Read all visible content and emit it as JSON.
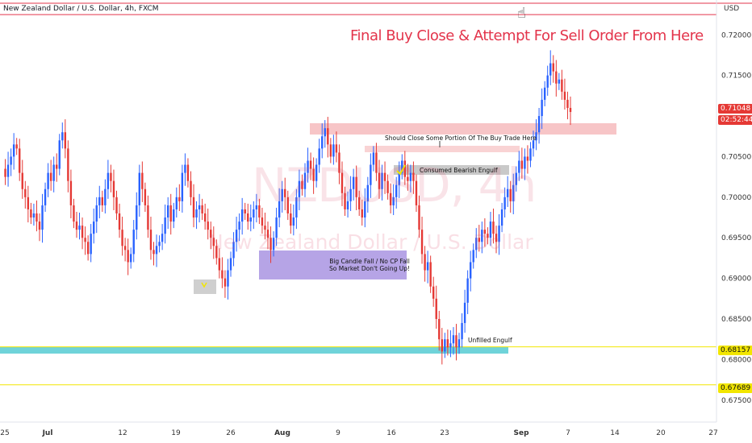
{
  "header": {
    "symbol_line": "New Zealand Dollar / U.S. Dollar, 4h, FXCM",
    "currency": "USD",
    "cursor_icon": "hand-pointer-icon"
  },
  "title": "Final Buy Close & Attempt For Sell Order From Here",
  "watermark": {
    "ticker": "NZDUSD, 4h",
    "name": "New Zealand Dollar / U.S. Dollar"
  },
  "annotations": {
    "should_close": "Should Close Some Portion Of The Buy Trade Here",
    "consumed": "Consumed Bearish Engulf",
    "big_candle_1": "Big Candle Fall / No CP Fall",
    "big_candle_2": "So Market Don't Going Up!",
    "unfilled": "Unfilled Engulf"
  },
  "price_badges": {
    "current_price": "0.71048",
    "countdown": "02:52:44",
    "level_1": "0.68157",
    "level_2": "0.67689"
  },
  "colors": {
    "up": "#2962ff",
    "down": "#e53935",
    "accent": "#e3344b",
    "cyan": "#6fd3d9",
    "yellow": "#f2e600",
    "pink": "#f7c5c7",
    "purple": "#b6a4e6",
    "grey": "#c6c6c6"
  },
  "chart_data": {
    "type": "candlestick",
    "symbol": "NZDUSD",
    "timeframe": "4h",
    "x_ticks": [
      "25",
      "Jul",
      "12",
      "19",
      "26",
      "Aug",
      "9",
      "16",
      "23",
      "Sep",
      "7",
      "14",
      "20",
      "27"
    ],
    "y_ticks": [
      "0.72000",
      "0.71500",
      "0.71048",
      "0.70500",
      "0.70000",
      "0.69500",
      "0.69000",
      "0.68500",
      "0.68000",
      "0.67500"
    ],
    "ylim": [
      0.6725,
      0.7235
    ],
    "horizontal_levels": [
      0.68157,
      0.67689,
      0.7225
    ],
    "last_price": 0.71048,
    "closes": [
      0.7035,
      0.7025,
      0.704,
      0.705,
      0.7065,
      0.706,
      0.703,
      0.701,
      0.7,
      0.6985,
      0.6975,
      0.698,
      0.697,
      0.696,
      0.699,
      0.701,
      0.703,
      0.702,
      0.704,
      0.7035,
      0.707,
      0.708,
      0.706,
      0.702,
      0.699,
      0.697,
      0.696,
      0.6965,
      0.695,
      0.6945,
      0.693,
      0.6955,
      0.697,
      0.699,
      0.7,
      0.699,
      0.701,
      0.703,
      0.702,
      0.7,
      0.698,
      0.696,
      0.694,
      0.6935,
      0.692,
      0.693,
      0.696,
      0.699,
      0.703,
      0.701,
      0.699,
      0.696,
      0.6935,
      0.693,
      0.694,
      0.6945,
      0.6955,
      0.6975,
      0.699,
      0.697,
      0.6985,
      0.7,
      0.6995,
      0.703,
      0.704,
      0.702,
      0.7,
      0.6975,
      0.6985,
      0.699,
      0.698,
      0.697,
      0.696,
      0.695,
      0.694,
      0.6925,
      0.691,
      0.69,
      0.689,
      0.691,
      0.6925,
      0.6945,
      0.696,
      0.697,
      0.6985,
      0.698,
      0.697,
      0.6975,
      0.6985,
      0.699,
      0.6975,
      0.6965,
      0.696,
      0.695,
      0.6935,
      0.695,
      0.6975,
      0.6995,
      0.701,
      0.7,
      0.698,
      0.6965,
      0.6975,
      0.7,
      0.702,
      0.701,
      0.703,
      0.7045,
      0.7035,
      0.702,
      0.704,
      0.706,
      0.7075,
      0.7085,
      0.7065,
      0.705,
      0.7065,
      0.7055,
      0.703,
      0.7005,
      0.6985,
      0.6995,
      0.701,
      0.7025,
      0.7,
      0.6985,
      0.6975,
      0.6995,
      0.7015,
      0.704,
      0.7055,
      0.703,
      0.701,
      0.703,
      0.702,
      0.7005,
      0.699,
      0.7,
      0.7015,
      0.703,
      0.7045,
      0.7025,
      0.702,
      0.703,
      0.702,
      0.699,
      0.696,
      0.693,
      0.691,
      0.692,
      0.689,
      0.6875,
      0.685,
      0.6825,
      0.681,
      0.6825,
      0.6815,
      0.682,
      0.683,
      0.6815,
      0.6825,
      0.6845,
      0.687,
      0.69,
      0.692,
      0.6935,
      0.695,
      0.6945,
      0.696,
      0.6955,
      0.695,
      0.697,
      0.6955,
      0.6945,
      0.6965,
      0.6985,
      0.7,
      0.701,
      0.6995,
      0.7015,
      0.703,
      0.7045,
      0.7035,
      0.705,
      0.7045,
      0.706,
      0.707,
      0.708,
      0.71,
      0.712,
      0.7135,
      0.715,
      0.7165,
      0.7155,
      0.714,
      0.7145,
      0.713,
      0.712,
      0.711,
      0.7105
    ]
  }
}
